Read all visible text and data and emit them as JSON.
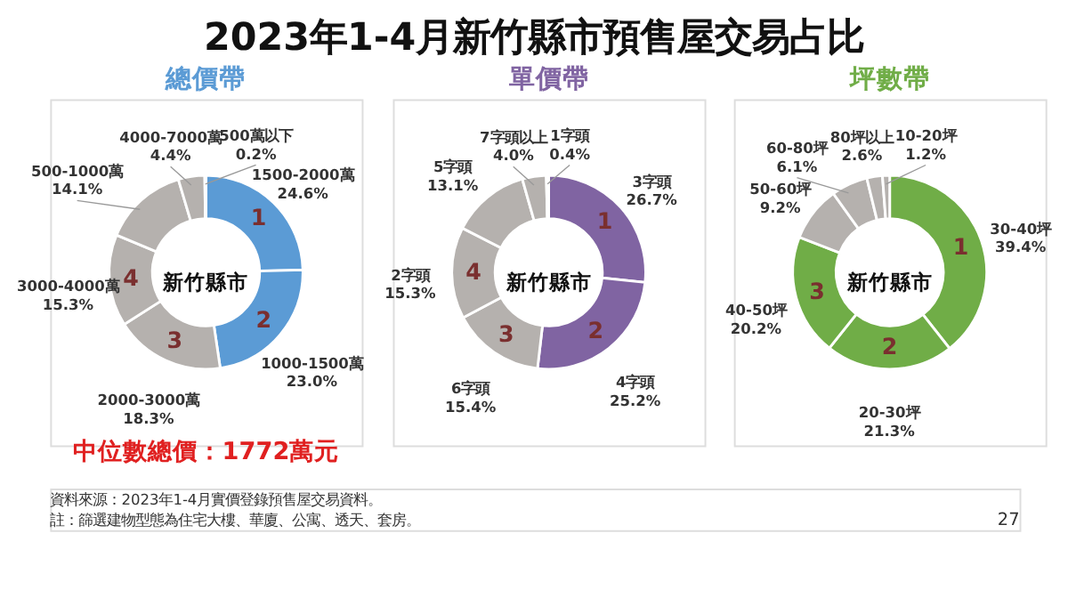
{
  "chart_data": [
    {
      "type": "donut",
      "title": "2023年1-4月新竹縣市預售屋交易占比",
      "subtitle": "總價帶",
      "categories": [
        "1500-2000萬",
        "1000-1500萬",
        "2000-3000萬",
        "3000-4000萬",
        "500-1000萬",
        "4000-7000萬",
        "500萬以下"
      ],
      "values": [
        24.6,
        23.0,
        18.3,
        15.3,
        14.1,
        4.4,
        0.2
      ],
      "value_labels": [
        "24.6%",
        "23.0%",
        "18.3%",
        "15.3%",
        "14.1%",
        "4.4%",
        "0.2%"
      ],
      "colors": [
        "#5b9bd5",
        "#5b9bd5",
        "#b5b1ae",
        "#b5b1ae",
        "#b5b1ae",
        "#b5b1ae",
        "#b5b1ae"
      ],
      "annotations": [
        "新竹縣市",
        {
          "text": "1",
          "x": "1500-2000萬"
        },
        {
          "text": "2",
          "x": "1000-1500萬"
        },
        {
          "text": "3",
          "x": "2000-3000萬"
        },
        {
          "text": "4",
          "x": "3000-4000萬"
        },
        "中位數總價：1772萬元",
        "資料來源：2023年1-4月實價登錄預售屋交易資料。",
        "註：篩選建物型態為住宅大樓、華廈、公寓、透天、套房。",
        "27"
      ]
    },
    {
      "type": "donut",
      "subtitle": "單價帶",
      "categories": [
        "3字頭",
        "4字頭",
        "6字頭",
        "2字頭",
        "5字頭",
        "7字頭以上",
        "1字頭"
      ],
      "values": [
        26.7,
        25.2,
        15.4,
        15.3,
        13.1,
        4.0,
        0.4
      ],
      "value_labels": [
        "26.7%",
        "25.2%",
        "15.4%",
        "15.3%",
        "13.1%",
        "4.0%",
        "0.4%"
      ],
      "colors": [
        "#8064a2",
        "#8064a2",
        "#b5b1ae",
        "#b5b1ae",
        "#b5b1ae",
        "#b5b1ae",
        "#b5b1ae"
      ],
      "annotations": [
        "新竹縣市",
        {
          "text": "1",
          "x": "3字頭"
        },
        {
          "text": "2",
          "x": "4字頭"
        },
        {
          "text": "3",
          "x": "6字頭"
        },
        {
          "text": "4",
          "x": "2字頭"
        }
      ]
    },
    {
      "type": "donut",
      "subtitle": "坪數帶",
      "categories": [
        "30-40坪",
        "20-30坪",
        "40-50坪",
        "50-60坪",
        "60-80坪",
        "80坪以上",
        "10-20坪"
      ],
      "values": [
        39.4,
        21.3,
        20.2,
        9.2,
        6.1,
        2.6,
        1.2
      ],
      "value_labels": [
        "39.4%",
        "21.3%",
        "20.2%",
        "9.2%",
        "6.1%",
        "2.6%",
        "1.2%"
      ],
      "colors": [
        "#70ad47",
        "#70ad47",
        "#70ad47",
        "#b5b1ae",
        "#b5b1ae",
        "#b5b1ae",
        "#b5b1ae"
      ],
      "annotations": [
        "新竹縣市",
        {
          "text": "1",
          "x": "30-40坪"
        },
        {
          "text": "2",
          "x": "20-30坪"
        },
        {
          "text": "3",
          "x": "40-50坪"
        }
      ]
    }
  ]
}
